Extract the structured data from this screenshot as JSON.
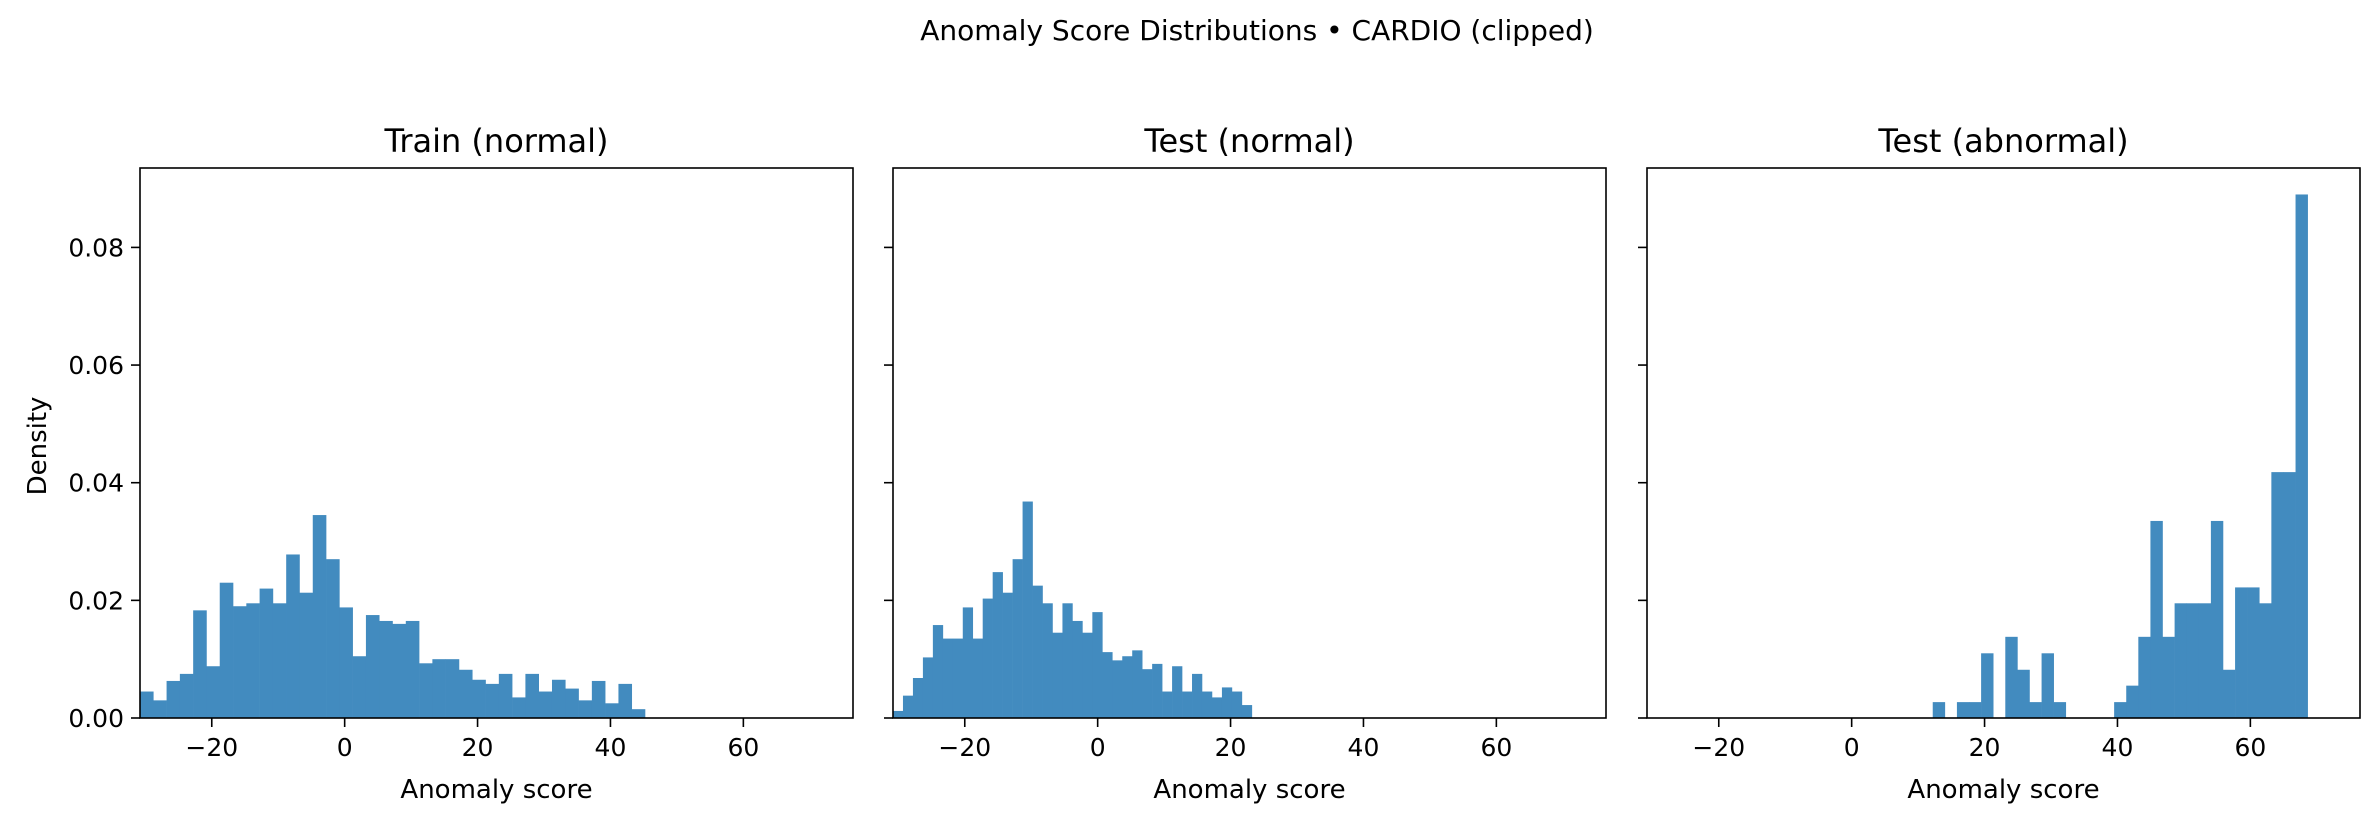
{
  "figure_title": "Anomaly Score Distributions • CARDIO (clipped)",
  "chart_data": [
    {
      "type": "bar",
      "title": "Train (normal)",
      "xlabel": "Anomaly score",
      "ylabel": "Density",
      "xlim": [
        -30.8,
        76.5
      ],
      "ylim": [
        0,
        0.0935
      ],
      "xticks": [
        "−20",
        "0",
        "20",
        "40",
        "60"
      ],
      "xtick_values": [
        -20,
        0,
        20,
        40,
        60
      ],
      "yticks": [
        "0.00",
        "0.02",
        "0.04",
        "0.06",
        "0.08"
      ],
      "ytick_values": [
        0,
        0.02,
        0.04,
        0.06,
        0.08
      ],
      "bin_start": -30.8,
      "bin_width": 2.0,
      "values": [
        0.0045,
        0.003,
        0.0063,
        0.0075,
        0.0183,
        0.0088,
        0.023,
        0.019,
        0.0195,
        0.022,
        0.0195,
        0.0278,
        0.0213,
        0.0345,
        0.027,
        0.0188,
        0.0105,
        0.0175,
        0.0165,
        0.016,
        0.0165,
        0.0093,
        0.01,
        0.01,
        0.0082,
        0.0065,
        0.0058,
        0.0075,
        0.0035,
        0.0075,
        0.0045,
        0.0065,
        0.005,
        0.003,
        0.0063,
        0.0025,
        0.0058,
        0.0015
      ],
      "color": "#428bbf",
      "show_yticklabels": true
    },
    {
      "type": "bar",
      "title": "Test (normal)",
      "xlabel": "Anomaly score",
      "xlim": [
        -30.8,
        76.5
      ],
      "ylim": [
        0,
        0.0935
      ],
      "xticks": [
        "−20",
        "0",
        "20",
        "40",
        "60"
      ],
      "xtick_values": [
        -20,
        0,
        20,
        40,
        60
      ],
      "ytick_values": [
        0,
        0.02,
        0.04,
        0.06,
        0.08
      ],
      "bin_start": -30.8,
      "bin_width": 1.5,
      "values": [
        0.0012,
        0.0038,
        0.0068,
        0.0103,
        0.0158,
        0.0135,
        0.0135,
        0.0188,
        0.0135,
        0.0203,
        0.0248,
        0.0213,
        0.027,
        0.0368,
        0.0225,
        0.0195,
        0.0145,
        0.0195,
        0.0165,
        0.0145,
        0.018,
        0.0112,
        0.0098,
        0.0105,
        0.0115,
        0.0083,
        0.0092,
        0.0045,
        0.0088,
        0.0045,
        0.0075,
        0.0045,
        0.0035,
        0.0052,
        0.0045,
        0.0022
      ],
      "color": "#428bbf",
      "show_yticklabels": false
    },
    {
      "type": "bar",
      "title": "Test (abnormal)",
      "xlabel": "Anomaly score",
      "xlim": [
        -30.8,
        76.5
      ],
      "ylim": [
        0,
        0.0935
      ],
      "xticks": [
        "−20",
        "0",
        "20",
        "40",
        "60"
      ],
      "xtick_values": [
        -20,
        0,
        20,
        40,
        60
      ],
      "ytick_values": [
        0,
        0.02,
        0.04,
        0.06,
        0.08
      ],
      "bin_start": 12.2,
      "bin_width": 1.82,
      "values": [
        0.0027,
        0,
        0.0027,
        0.0027,
        0.011,
        0,
        0.0138,
        0.0082,
        0.0027,
        0.011,
        0.0027,
        0,
        0,
        0,
        0,
        0.0027,
        0.0055,
        0.0138,
        0.0335,
        0.0138,
        0.0195,
        0.0195,
        0.0195,
        0.0335,
        0.0082,
        0.0222,
        0.0222,
        0.0195,
        0.0418,
        0.0418,
        0.089
      ],
      "color": "#428bbf",
      "show_yticklabels": false
    }
  ]
}
